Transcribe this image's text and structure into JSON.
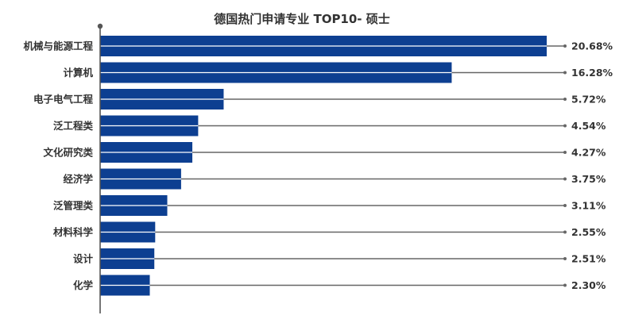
{
  "chart_data": {
    "type": "bar",
    "orientation": "horizontal",
    "title": "德国热门申请专业 TOP10- 硕士",
    "categories": [
      "机械与能源工程",
      "计算机",
      "电子电气工程",
      "泛工程类",
      "文化研究类",
      "经济学",
      "泛管理类",
      "材料科学",
      "设计",
      "化学"
    ],
    "values": [
      20.68,
      16.28,
      5.72,
      4.54,
      4.27,
      3.75,
      3.11,
      2.55,
      2.51,
      2.3
    ],
    "value_labels": [
      "20.68%",
      "16.28%",
      "5.72%",
      "4.54%",
      "4.27%",
      "3.75%",
      "3.11%",
      "2.55%",
      "2.51%",
      "2.30%"
    ],
    "unit": "%",
    "xlim": [
      0,
      21
    ],
    "grid": false,
    "legend": "none",
    "colors": {
      "bar": "#0d3f91",
      "bar_stripe": "#ffffff",
      "leader_line": "#666666",
      "axis": "#555555",
      "text": "#333333"
    }
  }
}
